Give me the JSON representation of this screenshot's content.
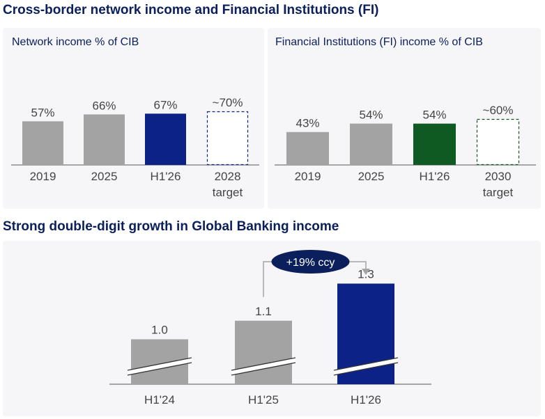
{
  "headings": {
    "top": "Cross-border network income and Financial Institutions (FI)",
    "bottom": "Strong double-digit growth in Global Banking income"
  },
  "colors": {
    "gray": "#a3a3a3",
    "navy": "#0c2286",
    "green": "#0f5a23",
    "dark": "#0a1f5c"
  },
  "chart_data": [
    {
      "type": "bar",
      "title": "Network income % of CIB",
      "categories": [
        "2019",
        "2025",
        "H1'26",
        "2028\ntarget"
      ],
      "values": [
        57,
        66,
        67,
        70
      ],
      "labels": [
        "57%",
        "66%",
        "67%",
        "~70%"
      ],
      "bar_styles": [
        "gray",
        "gray",
        "navy",
        "dashed-navy"
      ]
    },
    {
      "type": "bar",
      "title": "Financial Institutions (FI) income % of CIB",
      "categories": [
        "2019",
        "2025",
        "H1'26",
        "2030\ntarget"
      ],
      "values": [
        43,
        54,
        54,
        60
      ],
      "labels": [
        "43%",
        "54%",
        "54%",
        "~60%"
      ],
      "bar_styles": [
        "gray",
        "gray",
        "green",
        "dashed-green"
      ]
    },
    {
      "type": "bar",
      "title": "",
      "categories": [
        "H1'24",
        "H1'25",
        "H1'26"
      ],
      "values": [
        1.0,
        1.1,
        1.3
      ],
      "labels": [
        "1.0",
        "1.1",
        "1.3"
      ],
      "bar_styles": [
        "gray",
        "gray",
        "navy"
      ],
      "axis_break": true,
      "annotation": "+19% ccy"
    }
  ]
}
